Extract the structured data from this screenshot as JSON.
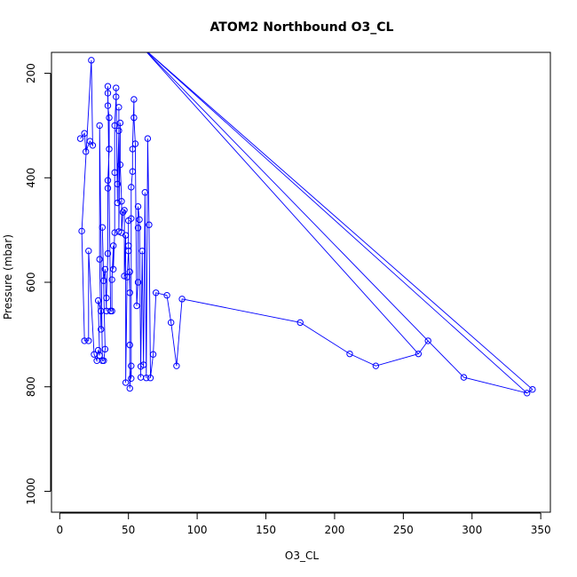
{
  "chart_data": {
    "type": "scatter",
    "title": "ATOM2 Northbound O3_CL",
    "xlabel": "O3_CL",
    "ylabel": "Pressure (mbar)",
    "xlim": [
      -6,
      357
    ],
    "ylim": [
      1040,
      160
    ],
    "y_reversed": true,
    "grid": false,
    "legend": "none",
    "series_color": "#0000ff",
    "x_ticks": [
      0,
      50,
      100,
      150,
      200,
      250,
      300,
      350
    ],
    "x_tick_labels": [
      "0",
      "50",
      "100",
      "150",
      "200",
      "250",
      "300",
      "350"
    ],
    "y_ticks": [
      200,
      400,
      600,
      800,
      1000
    ],
    "y_tick_labels": [
      "200",
      "400",
      "600",
      "800",
      "1000"
    ],
    "points": [
      [
        15,
        325
      ],
      [
        18,
        315
      ],
      [
        19,
        350
      ],
      [
        22,
        330
      ],
      [
        24,
        338
      ],
      [
        23,
        175
      ],
      [
        16,
        502
      ],
      [
        18,
        712
      ],
      [
        21,
        712
      ],
      [
        21,
        540
      ],
      [
        25,
        738
      ],
      [
        27,
        750
      ],
      [
        28,
        730
      ],
      [
        29,
        740
      ],
      [
        28,
        635
      ],
      [
        30,
        655
      ],
      [
        30,
        690
      ],
      [
        29,
        556
      ],
      [
        29,
        300
      ],
      [
        31,
        750
      ],
      [
        32,
        750
      ],
      [
        33,
        728
      ],
      [
        31,
        495
      ],
      [
        32,
        597
      ],
      [
        33,
        575
      ],
      [
        34,
        655
      ],
      [
        34,
        630
      ],
      [
        35,
        545
      ],
      [
        35,
        420
      ],
      [
        35,
        405
      ],
      [
        36,
        345
      ],
      [
        36,
        285
      ],
      [
        35,
        262
      ],
      [
        35,
        238
      ],
      [
        35,
        225
      ],
      [
        37,
        655
      ],
      [
        38,
        655
      ],
      [
        38,
        595
      ],
      [
        39,
        530
      ],
      [
        39,
        575
      ],
      [
        40,
        505
      ],
      [
        40,
        390
      ],
      [
        40,
        300
      ],
      [
        41,
        245
      ],
      [
        41,
        228
      ],
      [
        42,
        448
      ],
      [
        42,
        412
      ],
      [
        43,
        310
      ],
      [
        43,
        265
      ],
      [
        43,
        503
      ],
      [
        44,
        295
      ],
      [
        44,
        375
      ],
      [
        45,
        445
      ],
      [
        45,
        505
      ],
      [
        46,
        466
      ],
      [
        47,
        462
      ],
      [
        47,
        588
      ],
      [
        48,
        510
      ],
      [
        48,
        792
      ],
      [
        49,
        590
      ],
      [
        50,
        540
      ],
      [
        50,
        482
      ],
      [
        50,
        530
      ],
      [
        51,
        620
      ],
      [
        51,
        580
      ],
      [
        51,
        720
      ],
      [
        51,
        803
      ],
      [
        52,
        760
      ],
      [
        52,
        784
      ],
      [
        52,
        478
      ],
      [
        52,
        418
      ],
      [
        53,
        388
      ],
      [
        53,
        345
      ],
      [
        54,
        250
      ],
      [
        54,
        285
      ],
      [
        55,
        335
      ],
      [
        56,
        645
      ],
      [
        57,
        600
      ],
      [
        57,
        496
      ],
      [
        57,
        455
      ],
      [
        58,
        480
      ],
      [
        59,
        782
      ],
      [
        59,
        761
      ],
      [
        60,
        540
      ],
      [
        61,
        758
      ],
      [
        62,
        428
      ],
      [
        63,
        783
      ],
      [
        64,
        325
      ],
      [
        65,
        490
      ],
      [
        66,
        783
      ],
      [
        68,
        738
      ],
      [
        70,
        620
      ],
      [
        78,
        625
      ],
      [
        81,
        677
      ],
      [
        85,
        760
      ],
      [
        89,
        632
      ],
      [
        175,
        677
      ],
      [
        211,
        737
      ],
      [
        230,
        760
      ],
      [
        261,
        737
      ],
      [
        268,
        712
      ],
      [
        294,
        782
      ],
      [
        340,
        812
      ],
      [
        344,
        805
      ]
    ]
  }
}
